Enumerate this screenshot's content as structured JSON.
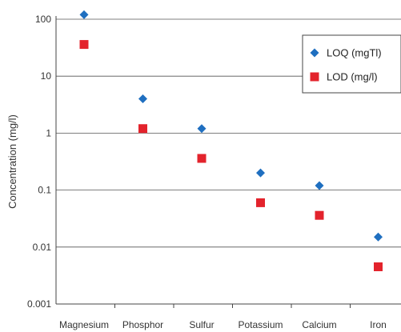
{
  "chart_data": {
    "type": "scatter",
    "scale_y": "log",
    "grid": true,
    "legend_position": "top-right",
    "categories": [
      "Magnesium",
      "Phosphor",
      "Sulfur",
      "Potassium",
      "Calcium",
      "Iron"
    ],
    "ylabel": "Concentration (mg/l)",
    "ylim": [
      0.001,
      100
    ],
    "yticks": [
      "100",
      "10",
      "1",
      "0.1",
      "0.01",
      "0.001"
    ],
    "series": [
      {
        "name": "LOQ (mgTl)",
        "marker": "diamond",
        "color": "#1f6fc0",
        "values": [
          120,
          4,
          1.2,
          0.2,
          0.12,
          0.015
        ]
      },
      {
        "name": "LOD (mg/l)",
        "marker": "square",
        "color": "#e3232c",
        "values": [
          36,
          1.2,
          0.36,
          0.06,
          0.036,
          0.0045
        ]
      }
    ]
  }
}
